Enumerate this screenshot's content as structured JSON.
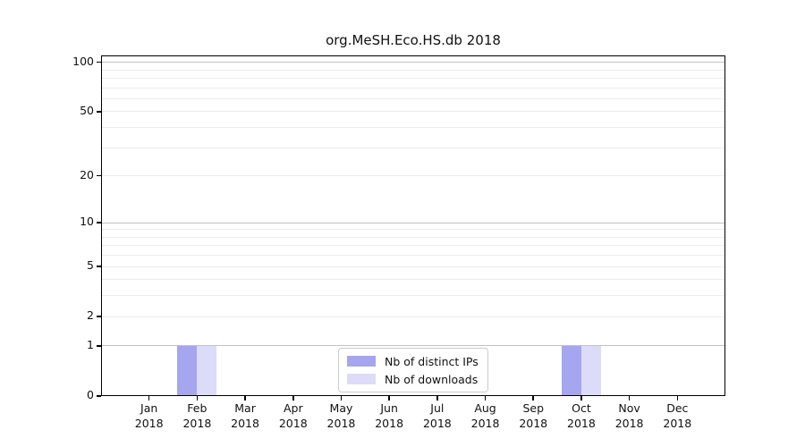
{
  "chart_data": {
    "type": "bar",
    "title": "org.MeSH.Eco.HS.db 2018",
    "categories": [
      "Jan",
      "Feb",
      "Mar",
      "Apr",
      "May",
      "Jun",
      "Jul",
      "Aug",
      "Sep",
      "Oct",
      "Nov",
      "Dec"
    ],
    "year_label": "2018",
    "series": [
      {
        "name": "Nb of distinct IPs",
        "color": "#a5a5f0",
        "values": [
          0,
          1,
          0,
          0,
          0,
          0,
          0,
          0,
          0,
          1,
          0,
          0
        ]
      },
      {
        "name": "Nb of downloads",
        "color": "#dcdcf8",
        "values": [
          0,
          1,
          0,
          0,
          0,
          0,
          0,
          0,
          0,
          1,
          0,
          0
        ]
      }
    ],
    "yscale": "log1p",
    "ylim": [
      0,
      110
    ],
    "y_major_ticks": [
      0,
      1,
      2,
      5,
      10,
      20,
      50,
      100
    ],
    "y_grid_major": [
      1,
      10,
      100
    ],
    "y_grid_minor": [
      2,
      3,
      4,
      5,
      6,
      7,
      8,
      9,
      20,
      30,
      40,
      50,
      60,
      70,
      80,
      90
    ],
    "legend": {
      "position": "lower center"
    },
    "grid": true,
    "colors": {
      "axis": "#000000",
      "grid_major": "#c2c2c2",
      "grid_minor": "#ececec",
      "text": "#111111"
    }
  }
}
